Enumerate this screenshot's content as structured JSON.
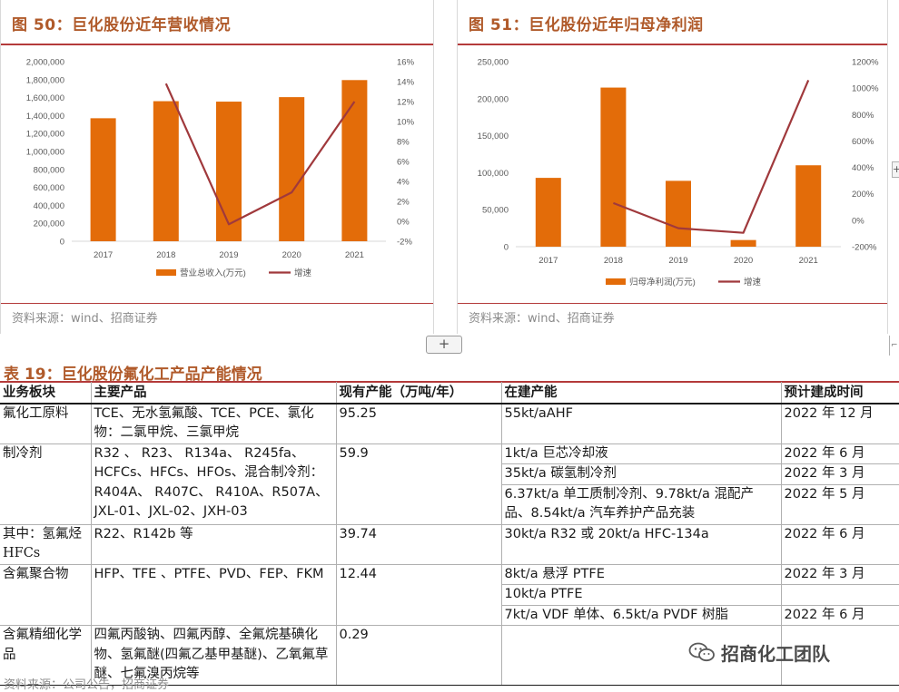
{
  "figure50": {
    "title": "图 50：巨化股份近年营收情况",
    "source": "资料来源：wind、招商证券"
  },
  "figure51": {
    "title": "图 51：巨化股份近年归母净利润",
    "source": "资料来源：wind、招商证券"
  },
  "chart_data": [
    {
      "type": "bar",
      "categories": [
        "2017",
        "2018",
        "2019",
        "2020",
        "2021"
      ],
      "series": [
        {
          "name": "营业总收入(万元)",
          "type": "bar",
          "axis": "left",
          "color": "#E36C09",
          "values": [
            1370000,
            1560000,
            1555000,
            1605000,
            1795000
          ]
        },
        {
          "name": "增速",
          "type": "line",
          "axis": "right",
          "color": "#A0393C",
          "values": [
            null,
            13.8,
            -0.3,
            2.9,
            12.0
          ]
        }
      ],
      "ylim": [
        0,
        2000000
      ],
      "yticks": [
        "0",
        "200,000",
        "400,000",
        "600,000",
        "800,000",
        "1,000,000",
        "1,200,000",
        "1,400,000",
        "1,600,000",
        "1,800,000",
        "2,000,000"
      ],
      "y2lim": [
        -2,
        16
      ],
      "y2ticks": [
        "-2%",
        "0%",
        "2%",
        "4%",
        "6%",
        "8%",
        "10%",
        "12%",
        "14%",
        "16%"
      ],
      "legend_position": "bottom"
    },
    {
      "type": "bar",
      "categories": [
        "2017",
        "2018",
        "2019",
        "2020",
        "2021"
      ],
      "series": [
        {
          "name": "归母净利润(万元)",
          "type": "bar",
          "axis": "left",
          "color": "#E36C09",
          "values": [
            93000,
            215000,
            89000,
            9000,
            110000
          ]
        },
        {
          "name": "增速",
          "type": "line",
          "axis": "right",
          "color": "#A0393C",
          "values": [
            null,
            130,
            -60,
            -95,
            1060
          ]
        }
      ],
      "ylim": [
        0,
        250000
      ],
      "yticks": [
        "0",
        "50,000",
        "100,000",
        "150,000",
        "200,000",
        "250,000"
      ],
      "y2lim": [
        -200,
        1200
      ],
      "y2ticks": [
        "-200%",
        "0%",
        "200%",
        "400%",
        "600%",
        "800%",
        "1000%",
        "1200%"
      ],
      "legend_position": "bottom"
    }
  ],
  "table19": {
    "title": "表 19：巨化股份氟化工产品产能情况",
    "headers": [
      "业务板块",
      "主要产品",
      "现有产能（万吨/年）",
      "在建产能",
      "预计建成时间"
    ],
    "rows": [
      {
        "segment": "氟化工原料",
        "products": "TCE、无水氢氟酸、TCE、PCE、氯化物：二氯甲烷、三氯甲烷",
        "capacity": "95.25",
        "projects": [
          {
            "name": "55kt/aAHF",
            "date": "2022 年 12 月"
          }
        ]
      },
      {
        "segment": "制冷剂",
        "products": "R32 、 R23、 R134a、 R245fa、HCFCs、HFCs、HFOs、混合制冷剂： R404A、 R407C、 R410A、R507A、JXL-01、JXL-02、JXH-03",
        "capacity": "59.9",
        "projects": [
          {
            "name": "1kt/a 巨芯冷却液",
            "date": "2022 年 6 月"
          },
          {
            "name": "35kt/a 碳氢制冷剂",
            "date": "2022 年 3 月"
          },
          {
            "name": "6.37kt/a 单工质制冷剂、9.78kt/a 混配产品、8.54kt/a 汽车养护产品充装",
            "date": "2022 年 5 月"
          }
        ]
      },
      {
        "segment": "其中：氢氟烃 HFCs",
        "products": "R22、R142b 等",
        "capacity": "39.74",
        "projects": [
          {
            "name": "30kt/a R32 或 20kt/a HFC-134a",
            "date": "2022 年 6 月"
          }
        ]
      },
      {
        "segment": "含氟聚合物",
        "products": "HFP、TFE 、PTFE、PVD、FEP、FKM",
        "capacity": "12.44",
        "projects": [
          {
            "name": "8kt/a 悬浮 PTFE",
            "date": "2022 年 3 月"
          },
          {
            "name": "10kt/a PTFE",
            "date": ""
          },
          {
            "name": "7kt/a VDF 单体、6.5kt/a PVDF 树脂",
            "date": "2022 年 6 月"
          }
        ]
      },
      {
        "segment": "含氟精细化学品",
        "products": "四氟丙酸钠、四氟丙醇、全氟烷基碘化物、氢氟醚(四氟乙基甲基醚)、乙氧氟草醚、七氟溴丙烷等",
        "capacity": "0.29",
        "projects": [
          {
            "name": "",
            "date": ""
          }
        ]
      }
    ],
    "source": "资料来源：公司公告，招商证券"
  },
  "watermark": {
    "text": "招商化工团队",
    "icon": "wechat-logo-icon"
  },
  "ui": {
    "expand_label": "+",
    "side_label": "+",
    "resize_label": "⌐"
  }
}
